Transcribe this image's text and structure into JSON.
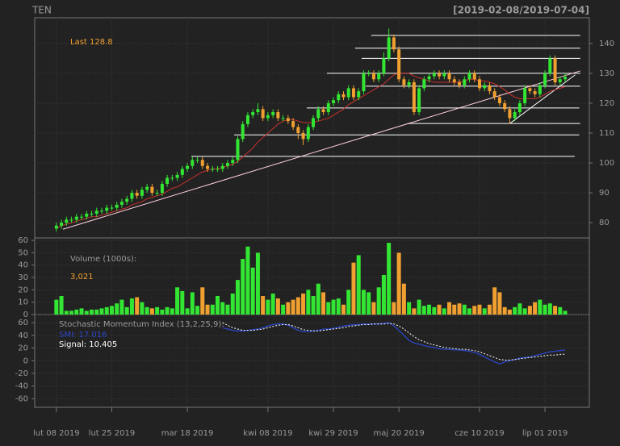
{
  "chart_data": [
    {
      "type": "candlestick",
      "title": "TEN",
      "subtitle": "[2019-02-08/2019-07-04]",
      "xlim": [
        -4.3,
        105.8
      ],
      "ylim": [
        74.9,
        148.6
      ],
      "yticks": [
        80,
        90,
        100,
        110,
        120,
        130,
        140
      ],
      "grid": true,
      "up_color": "#33e633",
      "down_color": "#f0a030",
      "open": [
        78,
        79,
        80,
        81,
        81,
        82,
        82,
        83,
        83,
        84,
        84,
        85,
        85,
        86,
        87,
        88,
        90,
        89,
        91,
        92,
        90,
        90,
        93,
        95,
        95,
        96,
        98,
        99,
        101,
        101,
        99,
        98,
        98,
        98,
        99,
        100,
        101,
        108,
        113,
        116,
        117,
        118,
        115,
        116,
        117,
        115,
        115,
        114,
        112,
        110,
        108,
        112,
        115,
        118,
        117,
        120,
        121,
        123,
        122,
        125,
        122,
        124,
        130,
        130,
        128,
        130,
        135,
        142,
        138,
        128,
        126,
        127,
        117,
        125,
        128,
        129,
        130,
        129,
        130,
        128,
        127,
        126,
        128,
        130,
        128,
        125,
        126,
        124,
        122,
        120,
        118,
        115,
        117,
        120,
        125,
        124,
        123,
        126,
        130,
        135,
        127,
        128
      ],
      "high": [
        80,
        81,
        82,
        82,
        83,
        83,
        84,
        84,
        85,
        85,
        86,
        86,
        87,
        88,
        89,
        91,
        91,
        92,
        93,
        93,
        91,
        94,
        96,
        96,
        97,
        99,
        100,
        102,
        102,
        102,
        100,
        99,
        99,
        100,
        101,
        102,
        109,
        114,
        117,
        118,
        120,
        119,
        117,
        118,
        118,
        116,
        116,
        115,
        113,
        111,
        113,
        116,
        119,
        119,
        121,
        122,
        124,
        124,
        126,
        126,
        125,
        131,
        131,
        131,
        131,
        137,
        145,
        143,
        139,
        129,
        128,
        128,
        126,
        129,
        130,
        131,
        131,
        131,
        131,
        129,
        128,
        129,
        131,
        131,
        129,
        127,
        127,
        125,
        123,
        121,
        119,
        118,
        121,
        126,
        126,
        125,
        127,
        131,
        136,
        136,
        129,
        130
      ],
      "low": [
        77,
        78,
        79,
        80,
        80,
        81,
        81,
        82,
        82,
        83,
        83,
        84,
        84,
        85,
        86,
        87,
        88,
        88,
        90,
        89,
        89,
        89,
        92,
        94,
        94,
        95,
        97,
        98,
        100,
        98,
        97,
        97,
        97,
        97,
        98,
        99,
        100,
        107,
        112,
        115,
        116,
        114,
        114,
        115,
        114,
        114,
        113,
        111,
        108,
        106,
        107,
        111,
        114,
        116,
        116,
        119,
        120,
        121,
        121,
        121,
        121,
        123,
        129,
        127,
        127,
        129,
        134,
        137,
        127,
        125,
        125,
        116,
        116,
        124,
        127,
        128,
        128,
        128,
        127,
        126,
        125,
        125,
        127,
        127,
        124,
        124,
        123,
        121,
        119,
        117,
        113,
        114,
        116,
        119,
        123,
        122,
        122,
        125,
        129,
        126,
        126,
        127
      ],
      "close": [
        79,
        80,
        81,
        81,
        82,
        82,
        83,
        83,
        84,
        84,
        85,
        85,
        86,
        87,
        88,
        90,
        89,
        91,
        92,
        90,
        90,
        93,
        95,
        95,
        96,
        98,
        99,
        101,
        101,
        99,
        98,
        98,
        98,
        99,
        100,
        101,
        108,
        113,
        116,
        117,
        118,
        115,
        116,
        117,
        115,
        115,
        114,
        112,
        110,
        108,
        112,
        115,
        118,
        117,
        120,
        121,
        123,
        122,
        125,
        122,
        124,
        130,
        130,
        128,
        130,
        135,
        142,
        138,
        128,
        126,
        127,
        117,
        125,
        128,
        129,
        130,
        129,
        130,
        128,
        127,
        126,
        128,
        130,
        128,
        125,
        126,
        124,
        122,
        120,
        118,
        115,
        117,
        120,
        125,
        124,
        123,
        126,
        130,
        135,
        127,
        128,
        128.8
      ],
      "overlays": [
        {
          "type": "line",
          "color": "#c8322c",
          "values": [
            78,
            79,
            79.5,
            80,
            80.5,
            81,
            81.5,
            82,
            82,
            82.5,
            83,
            83.5,
            84,
            84.5,
            85,
            86,
            86.5,
            87,
            88,
            88.5,
            89,
            89.5,
            90.5,
            91.5,
            92,
            93,
            94,
            95,
            96,
            97,
            97.5,
            98,
            98,
            98.5,
            99,
            99.5,
            100.5,
            102,
            103.5,
            105,
            107,
            108.5,
            110,
            111.5,
            113,
            114,
            114.5,
            114.5,
            114,
            113.5,
            113.5,
            113.5,
            114,
            114.5,
            115,
            116,
            117,
            118,
            119.5,
            120.5,
            121.5,
            122.5,
            123.5,
            124.5,
            125.5,
            126.5,
            128,
            129.5,
            130,
            130,
            130,
            129,
            128.5,
            128,
            127.5,
            127,
            127,
            127,
            127,
            127,
            127,
            127.5,
            128,
            128,
            127.5,
            127.5,
            127,
            126.5,
            125.5,
            124.5,
            123,
            122,
            121.5,
            121.5,
            121.5,
            121.5,
            122,
            123,
            124,
            124.5,
            125,
            125.5
          ]
        }
      ],
      "hlines": [
        {
          "value": 142.7,
          "from": 62.5,
          "to": 104
        },
        {
          "value": 138.4,
          "from": 59.3,
          "to": 104
        },
        {
          "value": 135,
          "from": 60.6,
          "to": 104
        },
        {
          "value": 130,
          "from": 53.7,
          "to": 104
        },
        {
          "value": 125.7,
          "from": 61.4,
          "to": 104
        },
        {
          "value": 118.4,
          "from": 49.7,
          "to": 103.8
        },
        {
          "value": 113.2,
          "from": 69.7,
          "to": 104
        },
        {
          "value": 109.4,
          "from": 35.3,
          "to": 103.8
        },
        {
          "value": 102.2,
          "from": 26.8,
          "to": 102.9
        }
      ],
      "line_color": "#ffffff",
      "trendlines": [
        {
          "x": [
            1.3,
            104
          ],
          "y": [
            77.8,
            130.8
          ],
          "color": "#ffd0e0"
        },
        {
          "x": [
            90,
            103
          ],
          "y": [
            113.2,
            129.5
          ],
          "color": "#ffffff"
        }
      ],
      "last": {
        "label": "Last",
        "value": 128.8
      },
      "last_color": "#f0a030"
    },
    {
      "type": "bar",
      "title": "Volume (1000s):",
      "last": {
        "value": 3.021,
        "label": "3,021"
      },
      "last_color": "#f0a030",
      "ylim": [
        0,
        62
      ],
      "yticks": [
        0,
        10,
        20,
        30,
        40,
        50,
        60
      ],
      "grid": true,
      "values": [
        12,
        15,
        3,
        3,
        4,
        5,
        3,
        4,
        4,
        5,
        6,
        7,
        9,
        12,
        6,
        13,
        14,
        10,
        6,
        5,
        6,
        4,
        6,
        5,
        22,
        19,
        5,
        18,
        7,
        22,
        8,
        8,
        15,
        10,
        8,
        17,
        28,
        45,
        55,
        38,
        50,
        15,
        12,
        17,
        13,
        8,
        10,
        12,
        14,
        17,
        20,
        15,
        25,
        18,
        10,
        12,
        13,
        8,
        20,
        42,
        48,
        20,
        18,
        10,
        22,
        32,
        58,
        10,
        50,
        25,
        10,
        5,
        12,
        7,
        8,
        6,
        8,
        5,
        10,
        8,
        9,
        8,
        5,
        7,
        8,
        5,
        8,
        22,
        18,
        6,
        4,
        6,
        9,
        5,
        7,
        10,
        12,
        8,
        9,
        7,
        6,
        3
      ]
    },
    {
      "type": "line",
      "title": "Stochastic Momentum Index (13,2,25,9):",
      "ylim": [
        -73.5,
        72.9
      ],
      "yticks": [
        -60,
        -40,
        -20,
        0,
        20,
        40,
        60
      ],
      "grid": true,
      "xticks": [
        {
          "value": 0,
          "label": "lut 08 2019"
        },
        {
          "value": 11,
          "label": "lut 25 2019"
        },
        {
          "value": 26,
          "label": "mar 18 2019"
        },
        {
          "value": 42,
          "label": "kwi 08 2019"
        },
        {
          "value": 55,
          "label": "kwi 29 2019"
        },
        {
          "value": 68,
          "label": "maj 20 2019"
        },
        {
          "value": 84,
          "label": "cze 10 2019"
        },
        {
          "value": 97,
          "label": "lip 01 2019"
        }
      ],
      "series": [
        {
          "name": "SMI:",
          "color": "#2a46c8",
          "dashed": false,
          "values": [
            null,
            null,
            null,
            null,
            null,
            null,
            null,
            null,
            null,
            null,
            null,
            null,
            null,
            null,
            null,
            null,
            null,
            null,
            null,
            null,
            null,
            null,
            null,
            null,
            null,
            null,
            null,
            null,
            null,
            null,
            null,
            null,
            null,
            52,
            50,
            48,
            47,
            47,
            48,
            49,
            50,
            52,
            55,
            57,
            58,
            58,
            56,
            52,
            48,
            46,
            46,
            47,
            48,
            50,
            50,
            51,
            53,
            55,
            56,
            57,
            57,
            58,
            58,
            58,
            58,
            59,
            60,
            55,
            48,
            40,
            32,
            28,
            26,
            24,
            22,
            21,
            19,
            18,
            18,
            17,
            17,
            16,
            15,
            13,
            10,
            6,
            2,
            -2,
            -5,
            -2,
            0,
            2,
            4,
            5,
            6,
            8,
            10,
            12,
            14,
            15,
            16,
            17.016
          ]
        },
        {
          "name": "Signal:",
          "color": "#ffffff",
          "dashed": true,
          "values": [
            null,
            null,
            null,
            null,
            null,
            null,
            null,
            null,
            null,
            null,
            null,
            null,
            null,
            null,
            null,
            null,
            null,
            null,
            null,
            null,
            null,
            null,
            null,
            null,
            null,
            null,
            null,
            null,
            null,
            null,
            null,
            null,
            null,
            60,
            56,
            52,
            50,
            48,
            48,
            48,
            49,
            50,
            52,
            54,
            56,
            57,
            57,
            55,
            52,
            49,
            48,
            47,
            47,
            48,
            49,
            50,
            51,
            52,
            54,
            55,
            56,
            57,
            57,
            58,
            58,
            58,
            59,
            58,
            55,
            50,
            44,
            38,
            33,
            30,
            27,
            25,
            23,
            21,
            20,
            19,
            18,
            18,
            17,
            16,
            14,
            11,
            8,
            5,
            2,
            1,
            1,
            2,
            3,
            4,
            5,
            6,
            7,
            8,
            9,
            9,
            10,
            10.405
          ]
        }
      ]
    }
  ]
}
